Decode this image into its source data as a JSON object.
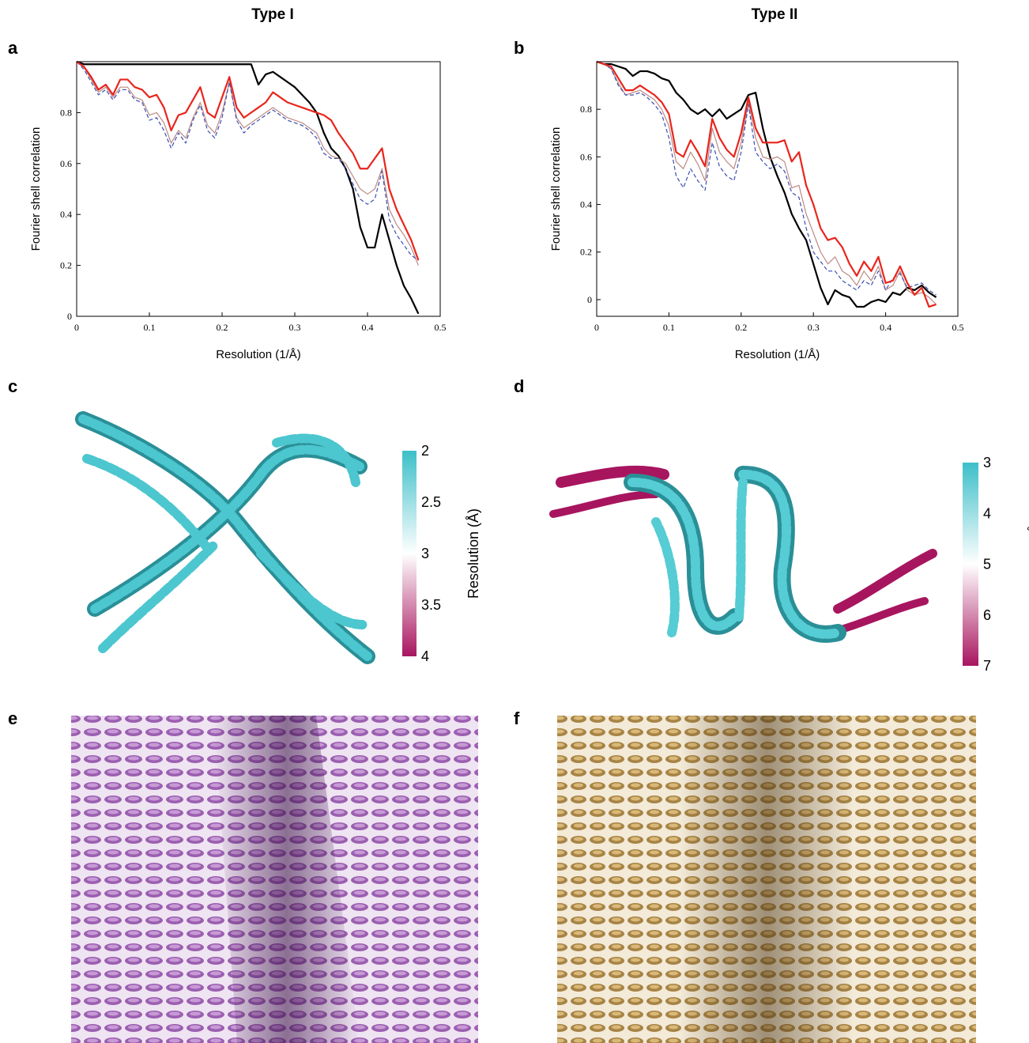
{
  "column_titles": [
    "Type I",
    "Type II"
  ],
  "panel_labels": [
    "a",
    "b",
    "c",
    "d",
    "e",
    "f"
  ],
  "chart_data": [
    {
      "type": "line",
      "xlabel": "Resolution (1/Å)",
      "ylabel": "Fourier shell correlation",
      "x": [
        0,
        0.01,
        0.02,
        0.03,
        0.04,
        0.05,
        0.06,
        0.07,
        0.08,
        0.09,
        0.1,
        0.11,
        0.12,
        0.13,
        0.14,
        0.15,
        0.16,
        0.17,
        0.18,
        0.19,
        0.2,
        0.21,
        0.22,
        0.23,
        0.24,
        0.25,
        0.26,
        0.27,
        0.28,
        0.29,
        0.3,
        0.31,
        0.32,
        0.33,
        0.34,
        0.35,
        0.36,
        0.37,
        0.38,
        0.39,
        0.4,
        0.41,
        0.42,
        0.43,
        0.44,
        0.45,
        0.46,
        0.47
      ],
      "xlim": [
        0,
        0.5
      ],
      "xticks": [
        0,
        0.1,
        0.2,
        0.3,
        0.4,
        0.5
      ],
      "ylim": [
        0,
        1
      ],
      "yticks": [
        0,
        0.2,
        0.4,
        0.6,
        0.8
      ],
      "series": [
        {
          "color": "#000000",
          "width": 2.2,
          "dashed": false,
          "values": [
            1.0,
            0.99,
            0.99,
            0.99,
            0.99,
            0.99,
            0.99,
            0.99,
            0.99,
            0.99,
            0.99,
            0.99,
            0.99,
            0.99,
            0.99,
            0.99,
            0.99,
            0.99,
            0.99,
            0.99,
            0.99,
            0.99,
            0.99,
            0.99,
            0.99,
            0.91,
            0.95,
            0.96,
            0.94,
            0.92,
            0.9,
            0.87,
            0.84,
            0.8,
            0.72,
            0.66,
            0.63,
            0.58,
            0.5,
            0.35,
            0.27,
            0.27,
            0.4,
            0.3,
            0.2,
            0.12,
            0.07,
            0.01
          ]
        },
        {
          "color": "#bc8a85",
          "width": 1.2,
          "dashed": false,
          "values": [
            1.0,
            0.98,
            0.93,
            0.88,
            0.9,
            0.86,
            0.9,
            0.9,
            0.86,
            0.85,
            0.79,
            0.8,
            0.76,
            0.68,
            0.73,
            0.7,
            0.78,
            0.84,
            0.75,
            0.72,
            0.8,
            0.92,
            0.78,
            0.74,
            0.76,
            0.78,
            0.8,
            0.82,
            0.8,
            0.78,
            0.77,
            0.76,
            0.74,
            0.72,
            0.66,
            0.63,
            0.62,
            0.6,
            0.55,
            0.5,
            0.48,
            0.5,
            0.58,
            0.42,
            0.36,
            0.32,
            0.27,
            0.2
          ]
        },
        {
          "color": "#3a4fb0",
          "width": 1.2,
          "dashed": true,
          "values": [
            1.0,
            0.97,
            0.92,
            0.87,
            0.89,
            0.85,
            0.89,
            0.89,
            0.85,
            0.84,
            0.77,
            0.78,
            0.73,
            0.66,
            0.72,
            0.68,
            0.77,
            0.83,
            0.73,
            0.7,
            0.78,
            0.92,
            0.77,
            0.72,
            0.75,
            0.77,
            0.79,
            0.81,
            0.79,
            0.77,
            0.76,
            0.75,
            0.73,
            0.7,
            0.64,
            0.62,
            0.62,
            0.58,
            0.52,
            0.46,
            0.44,
            0.46,
            0.57,
            0.38,
            0.32,
            0.28,
            0.24,
            0.22
          ]
        },
        {
          "color": "#e8251c",
          "width": 2.2,
          "dashed": false,
          "values": [
            1.0,
            0.98,
            0.94,
            0.89,
            0.91,
            0.87,
            0.93,
            0.93,
            0.9,
            0.89,
            0.86,
            0.87,
            0.82,
            0.73,
            0.79,
            0.8,
            0.85,
            0.9,
            0.8,
            0.78,
            0.86,
            0.94,
            0.82,
            0.78,
            0.8,
            0.82,
            0.84,
            0.88,
            0.86,
            0.84,
            0.83,
            0.82,
            0.81,
            0.8,
            0.79,
            0.77,
            0.72,
            0.68,
            0.64,
            0.58,
            0.58,
            0.62,
            0.66,
            0.5,
            0.42,
            0.36,
            0.3,
            0.22
          ]
        }
      ]
    },
    {
      "type": "line",
      "xlabel": "Resolution (1/Å)",
      "ylabel": "Fourier shell correlation",
      "x": [
        0,
        0.01,
        0.02,
        0.03,
        0.04,
        0.05,
        0.06,
        0.07,
        0.08,
        0.09,
        0.1,
        0.11,
        0.12,
        0.13,
        0.14,
        0.15,
        0.16,
        0.17,
        0.18,
        0.19,
        0.2,
        0.21,
        0.22,
        0.23,
        0.24,
        0.25,
        0.26,
        0.27,
        0.28,
        0.29,
        0.3,
        0.31,
        0.32,
        0.33,
        0.34,
        0.35,
        0.36,
        0.37,
        0.38,
        0.39,
        0.4,
        0.41,
        0.42,
        0.43,
        0.44,
        0.45,
        0.46,
        0.47
      ],
      "xlim": [
        0,
        0.5
      ],
      "xticks": [
        0,
        0.1,
        0.2,
        0.3,
        0.4,
        0.5
      ],
      "ylim": [
        -0.07,
        1
      ],
      "yticks": [
        0,
        0.2,
        0.4,
        0.6,
        0.8
      ],
      "series": [
        {
          "color": "#000000",
          "width": 2.2,
          "dashed": false,
          "values": [
            1.0,
            0.99,
            0.99,
            0.98,
            0.97,
            0.94,
            0.96,
            0.96,
            0.95,
            0.93,
            0.92,
            0.87,
            0.84,
            0.8,
            0.78,
            0.8,
            0.77,
            0.8,
            0.76,
            0.78,
            0.8,
            0.86,
            0.87,
            0.72,
            0.6,
            0.52,
            0.45,
            0.36,
            0.3,
            0.25,
            0.15,
            0.05,
            -0.02,
            0.04,
            0.02,
            0.01,
            -0.03,
            -0.03,
            -0.01,
            0.0,
            -0.01,
            0.03,
            0.02,
            0.05,
            0.04,
            0.06,
            0.03,
            0.01
          ]
        },
        {
          "color": "#bc8a85",
          "width": 1.2,
          "dashed": false,
          "values": [
            1.0,
            0.99,
            0.97,
            0.91,
            0.86,
            0.87,
            0.88,
            0.86,
            0.84,
            0.8,
            0.73,
            0.58,
            0.55,
            0.62,
            0.57,
            0.5,
            0.72,
            0.62,
            0.58,
            0.55,
            0.66,
            0.83,
            0.68,
            0.6,
            0.59,
            0.6,
            0.58,
            0.47,
            0.48,
            0.36,
            0.28,
            0.2,
            0.15,
            0.18,
            0.12,
            0.1,
            0.06,
            0.12,
            0.08,
            0.14,
            0.04,
            0.06,
            0.12,
            0.04,
            0.02,
            0.03,
            0.01,
            -0.02
          ]
        },
        {
          "color": "#3a4fb0",
          "width": 1.2,
          "dashed": true,
          "values": [
            1.0,
            0.99,
            0.97,
            0.9,
            0.86,
            0.86,
            0.87,
            0.85,
            0.82,
            0.78,
            0.68,
            0.52,
            0.47,
            0.55,
            0.5,
            0.46,
            0.66,
            0.56,
            0.52,
            0.5,
            0.62,
            0.82,
            0.62,
            0.58,
            0.55,
            0.57,
            0.54,
            0.45,
            0.43,
            0.3,
            0.2,
            0.16,
            0.12,
            0.12,
            0.08,
            0.06,
            0.04,
            0.08,
            0.06,
            0.12,
            0.04,
            0.09,
            0.11,
            0.05,
            0.06,
            0.07,
            0.04,
            0.02
          ]
        },
        {
          "color": "#e8251c",
          "width": 2.2,
          "dashed": false,
          "values": [
            1.0,
            0.99,
            0.98,
            0.93,
            0.88,
            0.88,
            0.9,
            0.88,
            0.86,
            0.83,
            0.78,
            0.62,
            0.6,
            0.67,
            0.62,
            0.56,
            0.76,
            0.68,
            0.63,
            0.6,
            0.7,
            0.85,
            0.72,
            0.66,
            0.66,
            0.66,
            0.67,
            0.58,
            0.62,
            0.48,
            0.4,
            0.3,
            0.25,
            0.26,
            0.22,
            0.15,
            0.1,
            0.16,
            0.12,
            0.18,
            0.07,
            0.08,
            0.14,
            0.07,
            0.02,
            0.05,
            -0.03,
            -0.02
          ]
        }
      ]
    }
  ],
  "colorbars": [
    {
      "label": "Resolution (Å)",
      "lim": [
        2,
        4
      ],
      "ticks": [
        2,
        2.5,
        3,
        3.5,
        4
      ],
      "colors": [
        "#3cbfc9",
        "#ffffff",
        "#a8155f"
      ]
    },
    {
      "label": "Resolution (Å)",
      "lim": [
        3,
        7
      ],
      "ticks": [
        3,
        4,
        5,
        6,
        7
      ],
      "colors": [
        "#3cbfc9",
        "#ffffff",
        "#a8155f"
      ]
    }
  ]
}
